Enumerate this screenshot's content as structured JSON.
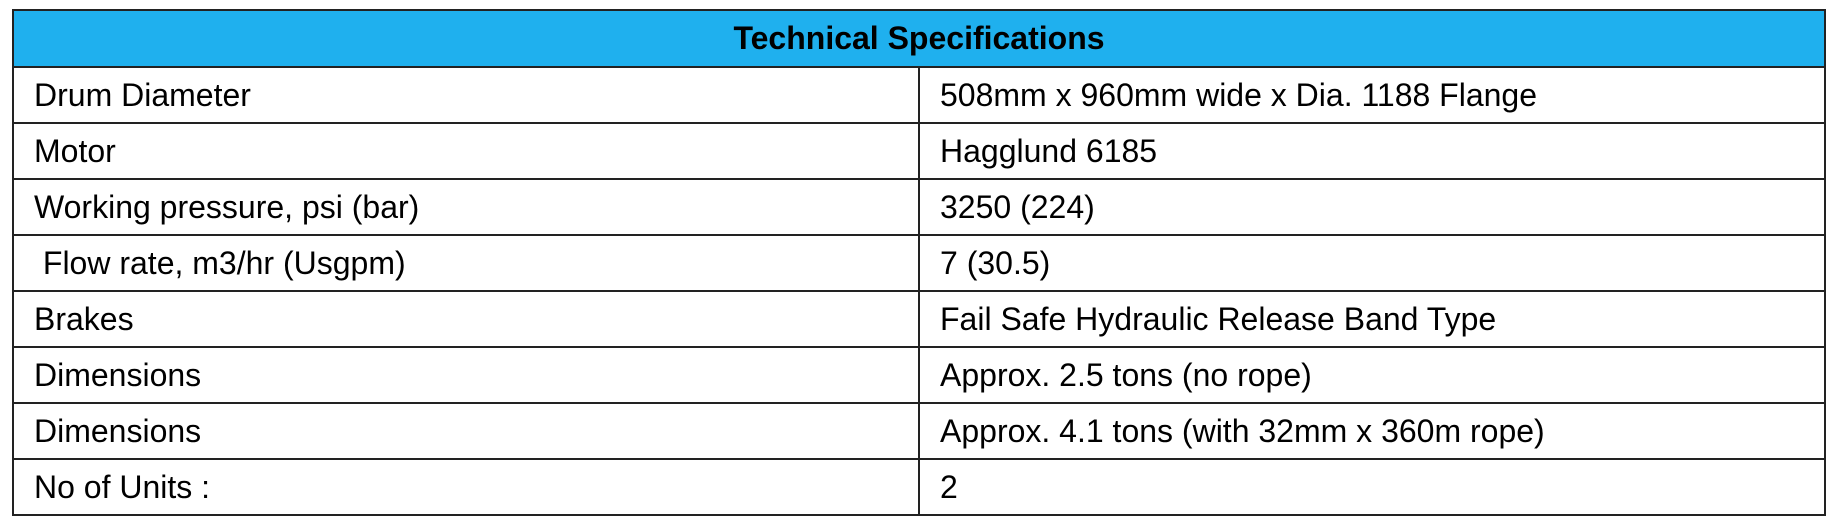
{
  "table": {
    "title": "Technical Specifications",
    "rows": [
      [
        "Drum Diameter",
        "508mm x 960mm wide x Dia. 1188 Flange"
      ],
      [
        "Motor",
        "Hagglund 6185"
      ],
      [
        "Working pressure, psi (bar)",
        "3250 (224)"
      ],
      [
        " Flow rate, m3/hr (Usgpm)",
        "7 (30.5)"
      ],
      [
        "Brakes",
        "Fail Safe Hydraulic Release Band Type"
      ],
      [
        "Dimensions",
        "Approx. 2.5 tons (no rope)"
      ],
      [
        "Dimensions",
        "Approx. 4.1 tons (with 32mm x 360m rope)"
      ],
      [
        "No of Units :",
        "2"
      ]
    ]
  }
}
